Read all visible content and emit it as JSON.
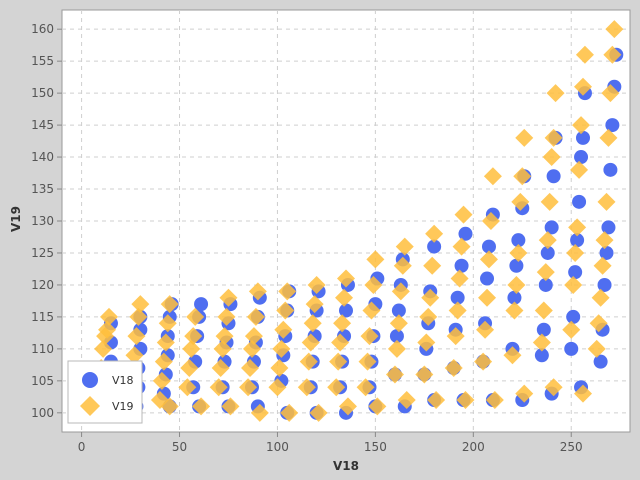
{
  "chart_data": {
    "type": "scatter",
    "title": "",
    "xlabel": "V18",
    "ylabel": "V19",
    "xlim": [
      -10,
      280
    ],
    "ylim": [
      97,
      163
    ],
    "xticks": [
      0,
      50,
      100,
      150,
      200,
      250
    ],
    "yticks": [
      100,
      105,
      110,
      115,
      120,
      125,
      130,
      135,
      140,
      145,
      150,
      155,
      160
    ],
    "grid": true,
    "legend_position": "bottom-left",
    "series": [
      {
        "name": "V18",
        "marker": "circle",
        "color": "#4f6ef0",
        "points": [
          [
            14,
            106
          ],
          [
            15,
            108
          ],
          [
            15,
            111
          ],
          [
            15,
            114
          ],
          [
            16,
            104
          ],
          [
            28,
            101
          ],
          [
            29,
            104
          ],
          [
            29,
            107
          ],
          [
            30,
            110
          ],
          [
            30,
            113
          ],
          [
            30,
            115
          ],
          [
            42,
            103
          ],
          [
            43,
            106
          ],
          [
            44,
            109
          ],
          [
            44,
            112
          ],
          [
            45,
            115
          ],
          [
            46,
            117
          ],
          [
            45,
            101
          ],
          [
            57,
            104
          ],
          [
            58,
            108
          ],
          [
            59,
            112
          ],
          [
            60,
            115
          ],
          [
            61,
            117
          ],
          [
            60,
            101
          ],
          [
            72,
            104
          ],
          [
            73,
            108
          ],
          [
            74,
            111
          ],
          [
            75,
            114
          ],
          [
            76,
            117
          ],
          [
            75,
            101
          ],
          [
            87,
            104
          ],
          [
            88,
            108
          ],
          [
            89,
            111
          ],
          [
            90,
            115
          ],
          [
            91,
            118
          ],
          [
            90,
            101
          ],
          [
            102,
            105
          ],
          [
            103,
            109
          ],
          [
            104,
            112
          ],
          [
            105,
            116
          ],
          [
            106,
            119
          ],
          [
            105,
            100
          ],
          [
            117,
            104
          ],
          [
            118,
            108
          ],
          [
            119,
            112
          ],
          [
            120,
            116
          ],
          [
            121,
            119
          ],
          [
            120,
            100
          ],
          [
            132,
            104
          ],
          [
            133,
            108
          ],
          [
            134,
            112
          ],
          [
            135,
            116
          ],
          [
            136,
            120
          ],
          [
            135,
            100
          ],
          [
            147,
            104
          ],
          [
            148,
            108
          ],
          [
            149,
            112
          ],
          [
            150,
            117
          ],
          [
            151,
            121
          ],
          [
            150,
            101
          ],
          [
            160,
            106
          ],
          [
            161,
            112
          ],
          [
            162,
            116
          ],
          [
            163,
            120
          ],
          [
            164,
            124
          ],
          [
            165,
            101
          ],
          [
            175,
            106
          ],
          [
            176,
            110
          ],
          [
            177,
            114
          ],
          [
            178,
            119
          ],
          [
            180,
            126
          ],
          [
            180,
            102
          ],
          [
            190,
            107
          ],
          [
            191,
            113
          ],
          [
            192,
            118
          ],
          [
            194,
            123
          ],
          [
            196,
            128
          ],
          [
            195,
            102
          ],
          [
            205,
            108
          ],
          [
            206,
            114
          ],
          [
            207,
            121
          ],
          [
            208,
            126
          ],
          [
            210,
            131
          ],
          [
            210,
            102
          ],
          [
            220,
            110
          ],
          [
            221,
            118
          ],
          [
            222,
            123
          ],
          [
            223,
            127
          ],
          [
            225,
            132
          ],
          [
            226,
            137
          ],
          [
            225,
            102
          ],
          [
            235,
            109
          ],
          [
            236,
            113
          ],
          [
            237,
            120
          ],
          [
            238,
            125
          ],
          [
            240,
            129
          ],
          [
            241,
            137
          ],
          [
            242,
            143
          ],
          [
            240,
            103
          ],
          [
            250,
            110
          ],
          [
            251,
            115
          ],
          [
            252,
            122
          ],
          [
            253,
            127
          ],
          [
            254,
            133
          ],
          [
            255,
            140
          ],
          [
            256,
            143
          ],
          [
            257,
            150
          ],
          [
            255,
            104
          ],
          [
            265,
            108
          ],
          [
            266,
            113
          ],
          [
            267,
            120
          ],
          [
            268,
            125
          ],
          [
            269,
            129
          ],
          [
            270,
            138
          ],
          [
            271,
            145
          ],
          [
            272,
            151
          ],
          [
            273,
            156
          ]
        ]
      },
      {
        "name": "V19",
        "marker": "diamond",
        "color": "#ffbe3c",
        "points": [
          [
            10,
            107
          ],
          [
            11,
            110
          ],
          [
            12,
            112
          ],
          [
            13,
            113
          ],
          [
            14,
            115
          ],
          [
            25,
            103
          ],
          [
            26,
            106
          ],
          [
            27,
            109
          ],
          [
            28,
            112
          ],
          [
            29,
            115
          ],
          [
            30,
            117
          ],
          [
            40,
            102
          ],
          [
            41,
            105
          ],
          [
            42,
            108
          ],
          [
            43,
            111
          ],
          [
            44,
            114
          ],
          [
            45,
            117
          ],
          [
            45,
            101
          ],
          [
            54,
            104
          ],
          [
            55,
            107
          ],
          [
            56,
            110
          ],
          [
            57,
            112
          ],
          [
            58,
            115
          ],
          [
            61,
            101
          ],
          [
            70,
            104
          ],
          [
            71,
            107
          ],
          [
            72,
            110
          ],
          [
            73,
            112
          ],
          [
            74,
            115
          ],
          [
            75,
            118
          ],
          [
            76,
            101
          ],
          [
            85,
            104
          ],
          [
            86,
            107
          ],
          [
            87,
            110
          ],
          [
            88,
            112
          ],
          [
            89,
            115
          ],
          [
            90,
            119
          ],
          [
            91,
            100
          ],
          [
            100,
            104
          ],
          [
            101,
            107
          ],
          [
            102,
            110
          ],
          [
            103,
            113
          ],
          [
            104,
            116
          ],
          [
            105,
            119
          ],
          [
            106,
            100
          ],
          [
            115,
            104
          ],
          [
            116,
            108
          ],
          [
            117,
            111
          ],
          [
            118,
            114
          ],
          [
            119,
            117
          ],
          [
            120,
            120
          ],
          [
            121,
            100
          ],
          [
            130,
            104
          ],
          [
            131,
            108
          ],
          [
            132,
            111
          ],
          [
            133,
            114
          ],
          [
            134,
            118
          ],
          [
            135,
            121
          ],
          [
            136,
            101
          ],
          [
            145,
            104
          ],
          [
            146,
            108
          ],
          [
            147,
            112
          ],
          [
            148,
            116
          ],
          [
            149,
            120
          ],
          [
            150,
            124
          ],
          [
            151,
            101
          ],
          [
            160,
            106
          ],
          [
            161,
            110
          ],
          [
            162,
            114
          ],
          [
            163,
            119
          ],
          [
            164,
            123
          ],
          [
            165,
            126
          ],
          [
            166,
            102
          ],
          [
            175,
            106
          ],
          [
            176,
            111
          ],
          [
            177,
            115
          ],
          [
            178,
            118
          ],
          [
            179,
            123
          ],
          [
            180,
            128
          ],
          [
            181,
            102
          ],
          [
            190,
            107
          ],
          [
            191,
            112
          ],
          [
            192,
            116
          ],
          [
            193,
            121
          ],
          [
            194,
            126
          ],
          [
            195,
            131
          ],
          [
            196,
            102
          ],
          [
            205,
            108
          ],
          [
            206,
            113
          ],
          [
            207,
            118
          ],
          [
            208,
            124
          ],
          [
            209,
            130
          ],
          [
            210,
            137
          ],
          [
            211,
            102
          ],
          [
            220,
            109
          ],
          [
            221,
            116
          ],
          [
            222,
            120
          ],
          [
            223,
            125
          ],
          [
            224,
            133
          ],
          [
            225,
            137
          ],
          [
            226,
            143
          ],
          [
            226,
            103
          ],
          [
            235,
            111
          ],
          [
            236,
            116
          ],
          [
            237,
            122
          ],
          [
            238,
            127
          ],
          [
            239,
            133
          ],
          [
            240,
            140
          ],
          [
            241,
            143
          ],
          [
            242,
            150
          ],
          [
            241,
            104
          ],
          [
            250,
            113
          ],
          [
            251,
            120
          ],
          [
            252,
            125
          ],
          [
            253,
            129
          ],
          [
            254,
            138
          ],
          [
            255,
            145
          ],
          [
            256,
            151
          ],
          [
            257,
            156
          ],
          [
            256,
            103
          ],
          [
            263,
            110
          ],
          [
            264,
            114
          ],
          [
            265,
            118
          ],
          [
            266,
            123
          ],
          [
            267,
            127
          ],
          [
            268,
            133
          ],
          [
            269,
            143
          ],
          [
            270,
            150
          ],
          [
            271,
            156
          ],
          [
            272,
            160
          ]
        ]
      }
    ]
  }
}
